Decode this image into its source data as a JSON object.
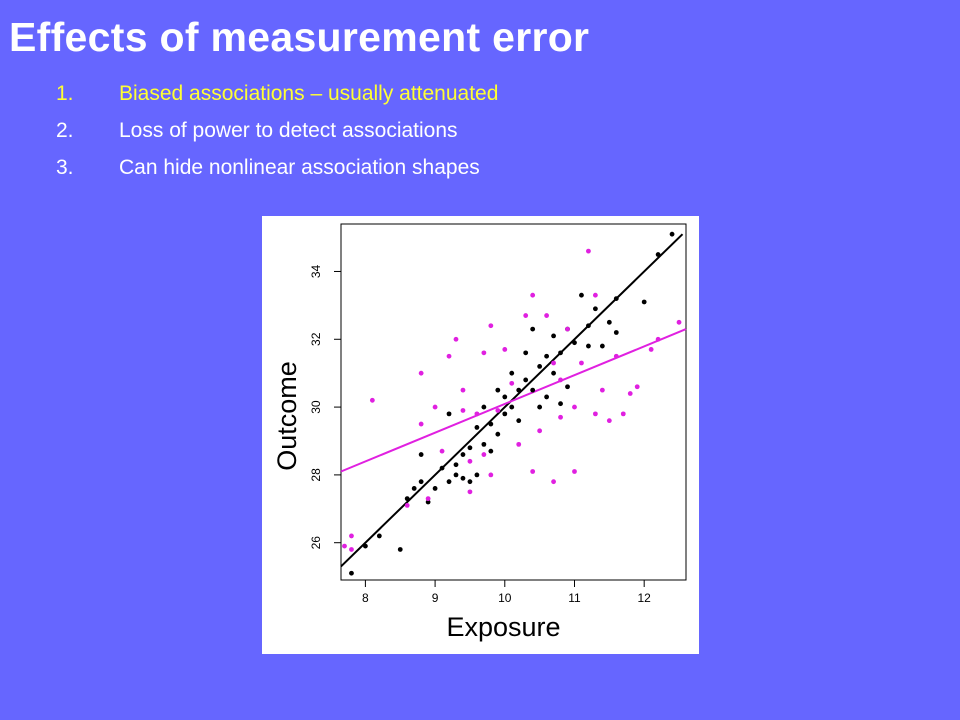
{
  "slide": {
    "title": "Effects of measurement error",
    "bullets": [
      {
        "num": "1.",
        "text": "Biased associations – usually attenuated",
        "color": "#ffff33"
      },
      {
        "num": "2.",
        "text": "Loss of power to detect associations",
        "color": "#ffffff"
      },
      {
        "num": "3.",
        "text": "Can hide nonlinear association shapes",
        "color": "#ffffff"
      }
    ]
  },
  "colors": {
    "background": "#6666ff",
    "true_series": "#000000",
    "error_series": "#e020e0"
  },
  "chart_data": {
    "type": "scatter",
    "xlabel": "Exposure",
    "ylabel": "Outcome",
    "xlim": [
      7.65,
      12.6
    ],
    "ylim": [
      24.9,
      35.4
    ],
    "xticks": [
      8,
      9,
      10,
      11,
      12
    ],
    "yticks": [
      26,
      28,
      30,
      32,
      34
    ],
    "grid": false,
    "series": [
      {
        "color": "#000000",
        "line": [
          [
            7.65,
            25.3
          ],
          [
            12.55,
            35.1
          ]
        ],
        "points": [
          [
            7.8,
            25.1
          ],
          [
            8.0,
            25.9
          ],
          [
            8.2,
            26.2
          ],
          [
            8.5,
            25.8
          ],
          [
            8.6,
            27.3
          ],
          [
            8.7,
            27.6
          ],
          [
            8.8,
            27.8
          ],
          [
            8.8,
            28.6
          ],
          [
            8.9,
            27.2
          ],
          [
            9.0,
            27.6
          ],
          [
            9.1,
            28.2
          ],
          [
            9.2,
            27.8
          ],
          [
            9.2,
            29.8
          ],
          [
            9.3,
            28.0
          ],
          [
            9.3,
            28.3
          ],
          [
            9.4,
            27.9
          ],
          [
            9.4,
            28.6
          ],
          [
            9.5,
            27.8
          ],
          [
            9.5,
            28.8
          ],
          [
            9.6,
            28.0
          ],
          [
            9.6,
            29.4
          ],
          [
            9.7,
            28.9
          ],
          [
            9.7,
            30.0
          ],
          [
            9.8,
            29.5
          ],
          [
            9.8,
            28.7
          ],
          [
            9.9,
            29.2
          ],
          [
            9.9,
            30.5
          ],
          [
            10.0,
            29.8
          ],
          [
            10.0,
            30.3
          ],
          [
            10.1,
            30.0
          ],
          [
            10.1,
            31.0
          ],
          [
            10.2,
            30.5
          ],
          [
            10.2,
            29.6
          ],
          [
            10.3,
            30.8
          ],
          [
            10.3,
            31.6
          ],
          [
            10.4,
            30.5
          ],
          [
            10.4,
            32.3
          ],
          [
            10.5,
            31.2
          ],
          [
            10.5,
            30.0
          ],
          [
            10.6,
            31.5
          ],
          [
            10.6,
            30.3
          ],
          [
            10.7,
            32.1
          ],
          [
            10.7,
            31.0
          ],
          [
            10.8,
            31.6
          ],
          [
            10.8,
            30.1
          ],
          [
            10.9,
            32.3
          ],
          [
            10.9,
            30.6
          ],
          [
            11.0,
            31.9
          ],
          [
            11.1,
            33.3
          ],
          [
            11.2,
            32.4
          ],
          [
            11.2,
            31.8
          ],
          [
            11.3,
            32.9
          ],
          [
            11.4,
            31.8
          ],
          [
            11.5,
            32.5
          ],
          [
            11.6,
            33.2
          ],
          [
            11.6,
            32.2
          ],
          [
            12.0,
            33.1
          ],
          [
            12.2,
            34.5
          ],
          [
            12.4,
            35.1
          ]
        ]
      },
      {
        "color": "#e020e0",
        "line": [
          [
            7.65,
            28.1
          ],
          [
            12.6,
            32.3
          ]
        ],
        "points": [
          [
            7.7,
            25.9
          ],
          [
            7.8,
            26.2
          ],
          [
            7.8,
            25.8
          ],
          [
            8.1,
            30.2
          ],
          [
            8.6,
            27.1
          ],
          [
            8.8,
            29.5
          ],
          [
            8.8,
            31.0
          ],
          [
            8.9,
            27.3
          ],
          [
            9.0,
            30.0
          ],
          [
            9.1,
            28.7
          ],
          [
            9.2,
            31.5
          ],
          [
            9.3,
            32.0
          ],
          [
            9.4,
            30.5
          ],
          [
            9.4,
            29.9
          ],
          [
            9.5,
            28.4
          ],
          [
            9.5,
            27.5
          ],
          [
            9.6,
            29.8
          ],
          [
            9.7,
            31.6
          ],
          [
            9.7,
            28.6
          ],
          [
            9.8,
            32.4
          ],
          [
            9.8,
            28.0
          ],
          [
            9.9,
            29.9
          ],
          [
            10.0,
            31.7
          ],
          [
            10.1,
            30.7
          ],
          [
            10.2,
            28.9
          ],
          [
            10.3,
            32.7
          ],
          [
            10.4,
            28.1
          ],
          [
            10.4,
            33.3
          ],
          [
            10.5,
            29.3
          ],
          [
            10.6,
            32.7
          ],
          [
            10.7,
            31.3
          ],
          [
            10.7,
            27.8
          ],
          [
            10.8,
            29.7
          ],
          [
            10.8,
            30.8
          ],
          [
            10.9,
            32.3
          ],
          [
            11.0,
            30.0
          ],
          [
            11.0,
            28.1
          ],
          [
            11.1,
            31.3
          ],
          [
            11.2,
            34.6
          ],
          [
            11.3,
            29.8
          ],
          [
            11.3,
            33.3
          ],
          [
            11.4,
            30.5
          ],
          [
            11.5,
            29.6
          ],
          [
            11.6,
            31.5
          ],
          [
            11.7,
            29.8
          ],
          [
            11.8,
            30.4
          ],
          [
            11.9,
            30.6
          ],
          [
            12.1,
            31.7
          ],
          [
            12.2,
            32.0
          ],
          [
            12.5,
            32.5
          ]
        ]
      }
    ]
  }
}
